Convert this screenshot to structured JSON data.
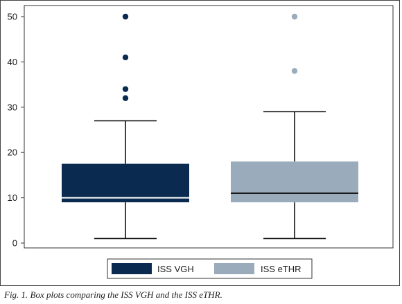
{
  "caption": "Fig. 1. Box plots comparing the ISS VGH and the ISS eTHR.",
  "chart_data": {
    "type": "box",
    "title": "",
    "xlabel": "",
    "ylabel": "",
    "ylim": [
      0,
      50
    ],
    "yticks": [
      "0",
      "10",
      "20",
      "30",
      "40",
      "50"
    ],
    "grid": false,
    "legend_position": "bottom",
    "series": [
      {
        "name": "ISS VGH",
        "color": "#0b2a4f",
        "median_color": "#ffffff",
        "whisker_low": 1,
        "q1": 9,
        "median": 10,
        "q3": 17.5,
        "whisker_high": 27,
        "outliers": [
          32,
          34,
          41,
          50
        ]
      },
      {
        "name": "ISS eTHR",
        "color": "#9aabbb",
        "median_color": "#1a1a1a",
        "whisker_low": 1,
        "q1": 9,
        "median": 11,
        "q3": 18,
        "whisker_high": 29,
        "outliers": [
          38,
          50
        ]
      }
    ]
  }
}
